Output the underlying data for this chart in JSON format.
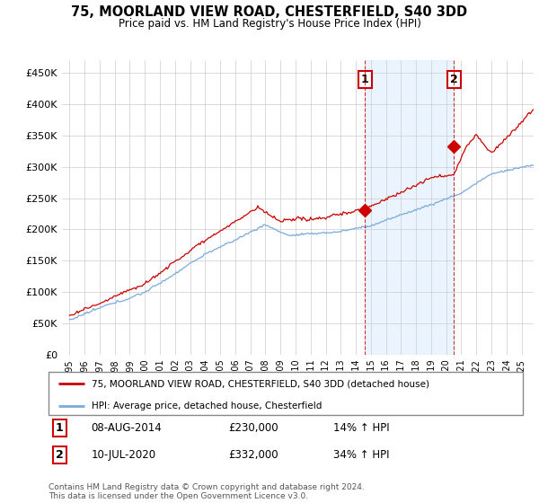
{
  "title": "75, MOORLAND VIEW ROAD, CHESTERFIELD, S40 3DD",
  "subtitle": "Price paid vs. HM Land Registry's House Price Index (HPI)",
  "ylim": [
    0,
    470000
  ],
  "yticks": [
    0,
    50000,
    100000,
    150000,
    200000,
    250000,
    300000,
    350000,
    400000,
    450000
  ],
  "ytick_labels": [
    "£0",
    "£50K",
    "£100K",
    "£150K",
    "£200K",
    "£250K",
    "£300K",
    "£350K",
    "£400K",
    "£450K"
  ],
  "legend_entry1": "75, MOORLAND VIEW ROAD, CHESTERFIELD, S40 3DD (detached house)",
  "legend_entry2": "HPI: Average price, detached house, Chesterfield",
  "sale1_label": "1",
  "sale1_date": "08-AUG-2014",
  "sale1_price": "£230,000",
  "sale1_hpi": "14% ↑ HPI",
  "sale1_year": 2014.6,
  "sale1_value": 230000,
  "sale2_label": "2",
  "sale2_date": "10-JUL-2020",
  "sale2_price": "£332,000",
  "sale2_hpi": "34% ↑ HPI",
  "sale2_year": 2020.5,
  "sale2_value": 332000,
  "footer": "Contains HM Land Registry data © Crown copyright and database right 2024.\nThis data is licensed under the Open Government Licence v3.0.",
  "red_color": "#cc0000",
  "blue_color": "#7aaadd",
  "shade_color": "#ddeeff",
  "xmin": 1994.5,
  "xmax": 2025.8
}
